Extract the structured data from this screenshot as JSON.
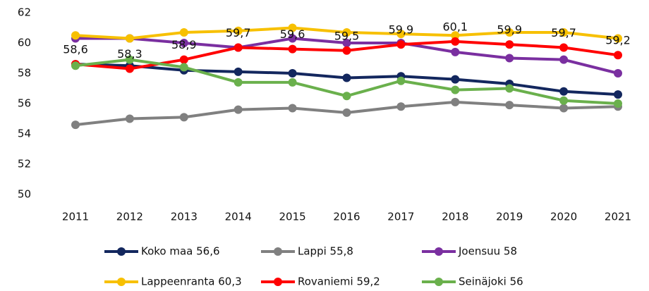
{
  "chart_data": {
    "type": "line",
    "categories": [
      "2011",
      "2012",
      "2013",
      "2014",
      "2015",
      "2016",
      "2017",
      "2018",
      "2019",
      "2020",
      "2021"
    ],
    "ylim": [
      50,
      62
    ],
    "yticks": [
      50,
      52,
      54,
      56,
      58,
      60,
      62
    ],
    "grid": false,
    "series": [
      {
        "name": "Koko maa 56,6",
        "color": "#13275e",
        "values": [
          58.6,
          58.5,
          58.2,
          58.1,
          58.0,
          57.7,
          57.8,
          57.6,
          57.3,
          56.8,
          56.6
        ]
      },
      {
        "name": "Lappi 55,8",
        "color": "#808080",
        "values": [
          54.6,
          55.0,
          55.1,
          55.6,
          55.7,
          55.4,
          55.8,
          56.1,
          55.9,
          55.7,
          55.8
        ]
      },
      {
        "name": "Joensuu 58",
        "color": "#7a2fa0",
        "values": [
          60.3,
          60.3,
          60.0,
          59.7,
          60.3,
          60.0,
          60.0,
          59.4,
          59.0,
          58.9,
          58.0
        ]
      },
      {
        "name": "Lappeenranta 60,3",
        "color": "#f7c000",
        "values": [
          60.5,
          60.3,
          60.7,
          60.8,
          61.0,
          60.7,
          60.6,
          60.5,
          60.7,
          60.7,
          60.3
        ]
      },
      {
        "name": "Rovaniemi 59,2",
        "color": "#ff0000",
        "values": [
          58.6,
          58.3,
          58.9,
          59.7,
          59.6,
          59.5,
          59.9,
          60.1,
          59.9,
          59.7,
          59.2
        ],
        "value_labels": [
          "58,6",
          "58,3",
          "58,9",
          "59,7",
          "59,6",
          "59,5",
          "59,9",
          "60,1",
          "59,9",
          "59,7",
          "59,2"
        ]
      },
      {
        "name": "Seinäjoki 56",
        "color": "#6ab04c",
        "values": [
          58.5,
          58.9,
          58.4,
          57.4,
          57.4,
          56.5,
          57.5,
          56.9,
          57.0,
          56.2,
          56.0
        ]
      }
    ]
  }
}
